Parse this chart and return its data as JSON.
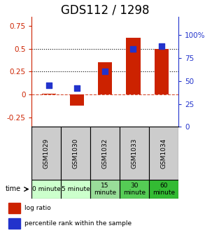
{
  "title": "GDS112 / 1298",
  "samples": [
    "GSM1029",
    "GSM1030",
    "GSM1032",
    "GSM1033",
    "GSM1034"
  ],
  "log_ratio": [
    0.01,
    -0.12,
    0.35,
    0.62,
    0.5
  ],
  "percentile": [
    45,
    42,
    60,
    85,
    88
  ],
  "time_labels": [
    "0 minute",
    "5 minute",
    "15\nminute",
    "30\nminute",
    "60\nminute"
  ],
  "time_colors": [
    "#ccffcc",
    "#ccffcc",
    "#99dd99",
    "#55cc55",
    "#33bb33"
  ],
  "ylim_left": [
    -0.35,
    0.85
  ],
  "ylim_right": [
    0,
    120
  ],
  "yticks_left": [
    -0.25,
    0.0,
    0.25,
    0.5,
    0.75
  ],
  "yticks_right": [
    0,
    25,
    50,
    75,
    100
  ],
  "bar_color": "#cc2200",
  "dot_color": "#2233cc",
  "bar_width": 0.5,
  "dot_size": 28,
  "sample_bg_color": "#cccccc",
  "title_fontsize": 12,
  "tick_fontsize": 7.5,
  "sample_fontsize": 6.5,
  "time_fontsize": 6.5,
  "legend_fontsize": 6.5
}
